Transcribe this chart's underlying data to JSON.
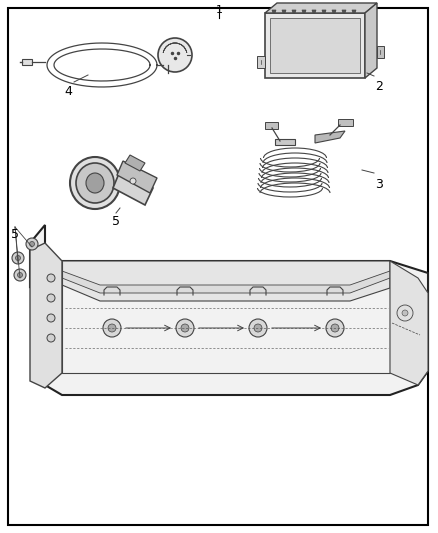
{
  "bg_color": "#ffffff",
  "border_color": "#000000",
  "line_color": "#444444",
  "fig_width": 4.38,
  "fig_height": 5.33,
  "dpi": 100,
  "label_1": "1",
  "label_2": "2",
  "label_3": "3",
  "label_4": "4",
  "label_5": "5"
}
